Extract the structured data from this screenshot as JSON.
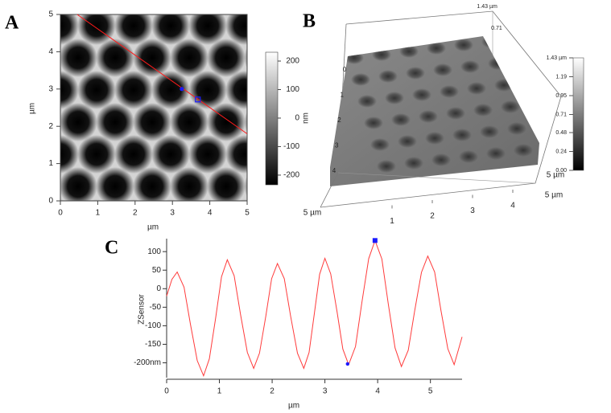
{
  "chart_data": [
    {
      "type": "image",
      "panel_label": "A",
      "xlabel": "µm",
      "ylabel": "µm",
      "xlim": [
        0,
        5
      ],
      "ylim": [
        0,
        5
      ],
      "xticks": [
        0,
        1,
        2,
        3,
        4,
        5
      ],
      "yticks": [
        0,
        1,
        2,
        3,
        4,
        5
      ],
      "colorbar": {
        "label": "nm",
        "lim": [
          -234,
          231
        ],
        "ticks": [
          200,
          100,
          0,
          -100,
          -200
        ]
      },
      "line": {
        "color": "#ff1a1a",
        "x": [
          0.45,
          5
        ],
        "y": [
          5,
          1.8
        ]
      },
      "cursors": {
        "color": "#1a1aff",
        "x": [
          3.25,
          3.68
        ],
        "y": [
          3.0,
          2.72
        ]
      }
    },
    {
      "type": "surface",
      "panel_label": "B",
      "xticks": [
        1,
        2,
        3,
        4
      ],
      "yticks": [
        0,
        1,
        2,
        3,
        4
      ],
      "zticks": [
        {
          "value": 1.43,
          "label": "1.43 µm"
        },
        0.71
      ],
      "axis_end_labels": [
        "5 µm",
        "5 µm",
        "5 µm"
      ],
      "colorbar": {
        "lim": [
          0,
          1.43
        ],
        "ticks": [
          {
            "value": 1.43,
            "label": "1.43 µm"
          },
          1.19,
          0.95,
          0.71,
          0.48,
          0.24,
          {
            "value": 0,
            "label": "0.00"
          }
        ]
      }
    },
    {
      "type": "line",
      "panel_label": "C",
      "xlabel": "µm",
      "ylabel": "ZSensor",
      "xlim": [
        0,
        5.6
      ],
      "ylim": [
        -240,
        135
      ],
      "xticks": [
        0,
        1,
        2,
        3,
        4,
        5
      ],
      "yticks": [
        100,
        50,
        0,
        -50,
        -100,
        -150,
        {
          "value": -200,
          "label": "-200nm"
        }
      ],
      "series": [
        {
          "color": "#ff3b3b",
          "x": [
            0,
            0.1,
            0.2,
            0.33,
            0.45,
            0.58,
            0.7,
            0.81,
            0.93,
            1.04,
            1.15,
            1.28,
            1.4,
            1.53,
            1.65,
            1.76,
            1.88,
            1.99,
            2.1,
            2.23,
            2.35,
            2.48,
            2.6,
            2.7,
            2.8,
            2.9,
            3.0,
            3.11,
            3.23,
            3.34,
            3.45,
            3.58,
            3.7,
            3.83,
            3.95,
            4.08,
            4.2,
            4.33,
            4.45,
            4.58,
            4.7,
            4.83,
            4.95,
            5.08,
            5.2,
            5.33,
            5.45,
            5.6
          ],
          "values": [
            -20,
            25,
            45,
            4,
            -95,
            -194,
            -235,
            -189,
            -78,
            32,
            78,
            35,
            -69,
            -172,
            -215,
            -174,
            -74,
            27,
            68,
            27,
            -74,
            -174,
            -215,
            -172,
            -67,
            39,
            82,
            40,
            -62,
            -163,
            -205,
            -156,
            -38,
            81,
            130,
            80,
            -40,
            -160,
            -210,
            -166,
            -61,
            44,
            88,
            45,
            -59,
            -162,
            -205,
            -130
          ]
        }
      ],
      "cursors": {
        "color": "#1a1aff",
        "x": [
          3.95,
          3.43
        ],
        "values": [
          130,
          -203
        ]
      }
    }
  ]
}
